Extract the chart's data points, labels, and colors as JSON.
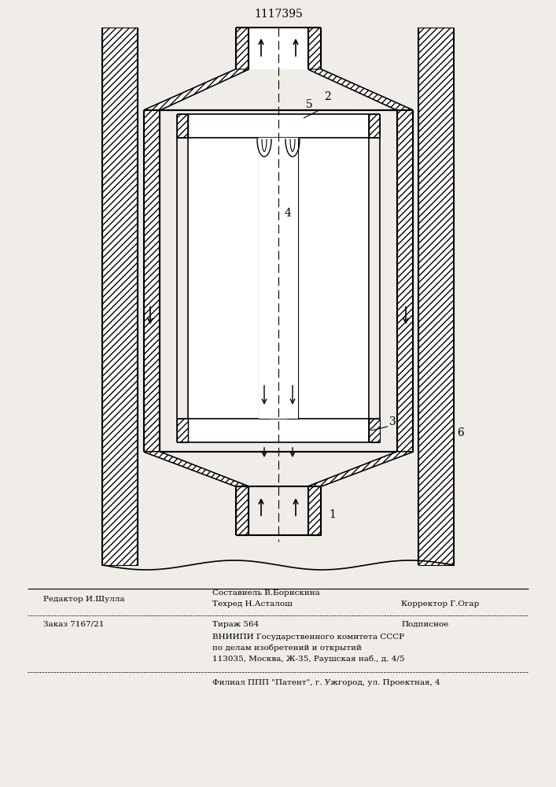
{
  "patent_number": "1117395",
  "bg_color": "#f0ede8",
  "fig_width": 7.07,
  "fig_height": 10.0,
  "footer": {
    "editor": "Редактор И.Шулла",
    "composer": "Составиель В.Борискина",
    "techred": "Техред Н.Асталош",
    "corrector": "Корректор Г.Огар",
    "order": "Заказ 7167/21",
    "tirazh": "Тираж 564",
    "podpisnoe": "Подписное",
    "vnipi": "ВНИИПИ Государственного комитета СССР",
    "po_delam": "по делам изобретений и открытий",
    "address": "113035, Москва, Ж-35, Раушская наб., д. 4/5",
    "filial": "Филиал ППП \"Патент\", г. Ужгород, ул. Проектная, 4"
  }
}
